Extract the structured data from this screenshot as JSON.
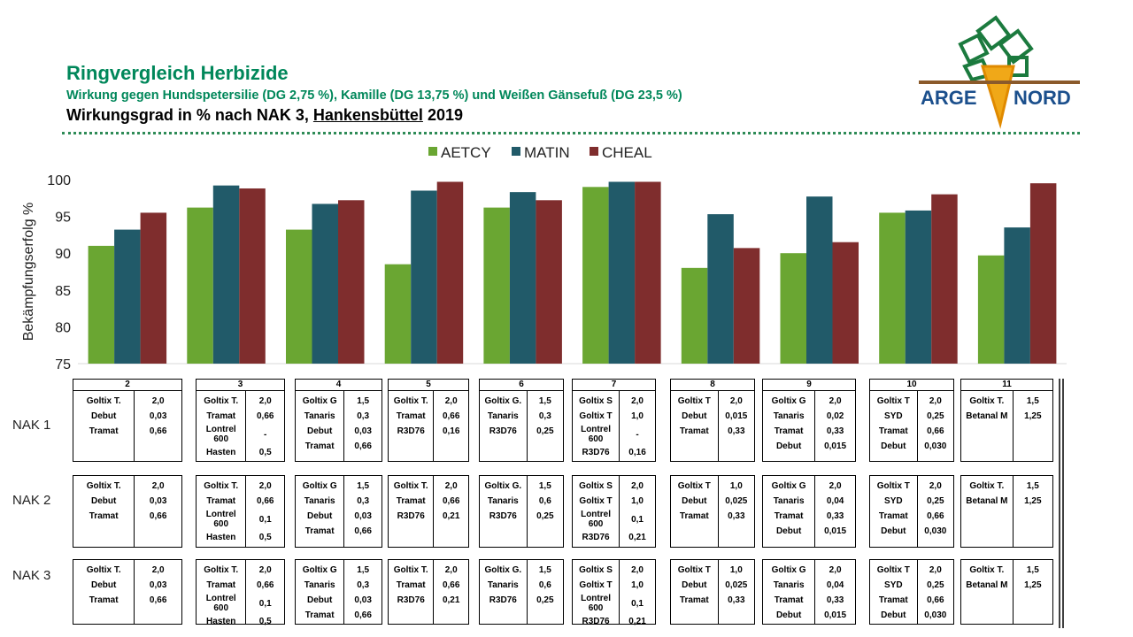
{
  "header": {
    "title": "Ringvergleich Herbizide",
    "subtitle": "Wirkung gegen Hundspetersilie (DG 2,75 %), Kamille (DG 13,75 %) und Weißen Gänsefuß (DG 23,5 %)",
    "heading": [
      "Wirkungsgrad in % nach NAK 3,",
      "Hankensbüttel",
      "2019"
    ]
  },
  "logo": [
    "ARGE",
    "NORD"
  ],
  "chart_data": {
    "type": "bar",
    "ylabel": "Bekämpfungserfolg %",
    "categories": [
      "2",
      "3",
      "4",
      "5",
      "6",
      "7",
      "8",
      "9",
      "10",
      "11"
    ],
    "series": [
      {
        "name": "AETCY",
        "color": "#6aa632",
        "values": [
          91,
          96.2,
          93.2,
          88.5,
          96.2,
          99,
          88,
          90,
          95.5,
          89.7
        ]
      },
      {
        "name": "MATIN",
        "color": "#215a69",
        "values": [
          93.2,
          99.2,
          96.7,
          98.5,
          98.3,
          99.7,
          95.3,
          97.7,
          95.8,
          93.5
        ]
      },
      {
        "name": "CHEAL",
        "color": "#7f2d2d",
        "values": [
          95.5,
          98.8,
          97.2,
          99.7,
          97.2,
          99.7,
          90.7,
          91.5,
          98,
          99.5
        ]
      }
    ],
    "ylim": [
      75,
      100
    ],
    "yticks": [
      75,
      80,
      85,
      90,
      95,
      100
    ],
    "grid": false,
    "legend": "top"
  },
  "treatments": {
    "rows": [
      "NAK 1",
      "NAK 2",
      "NAK 3"
    ],
    "columns": [
      [
        [
          [
            "Goltix T.",
            "2,0"
          ],
          [
            "Debut",
            "0,03"
          ],
          [
            "Tramat",
            "0,66"
          ]
        ],
        [
          [
            "Goltix T.",
            "2,0"
          ],
          [
            "Debut",
            "0,03"
          ],
          [
            "Tramat",
            "0,66"
          ]
        ],
        [
          [
            "Goltix T.",
            "2,0"
          ],
          [
            "Debut",
            "0,03"
          ],
          [
            "Tramat",
            "0,66"
          ]
        ]
      ],
      [
        [
          [
            "Goltix T.",
            "2,0"
          ],
          [
            "Tramat",
            "0,66"
          ],
          [
            "Lontrel 600",
            "-"
          ],
          [
            "Hasten",
            "0,5"
          ]
        ],
        [
          [
            "Goltix T.",
            "2,0"
          ],
          [
            "Tramat",
            "0,66"
          ],
          [
            "Lontrel 600",
            "0,1"
          ],
          [
            "Hasten",
            "0,5"
          ]
        ],
        [
          [
            "Goltix T.",
            "2,0"
          ],
          [
            "Tramat",
            "0,66"
          ],
          [
            "Lontrel 600",
            "0,1"
          ],
          [
            "Hasten",
            "0,5"
          ]
        ]
      ],
      [
        [
          [
            "Goltix G",
            "1,5"
          ],
          [
            "Tanaris",
            "0,3"
          ],
          [
            "Debut",
            "0,03"
          ],
          [
            "Tramat",
            "0,66"
          ]
        ],
        [
          [
            "Goltix G",
            "1,5"
          ],
          [
            "Tanaris",
            "0,3"
          ],
          [
            "Debut",
            "0,03"
          ],
          [
            "Tramat",
            "0,66"
          ]
        ],
        [
          [
            "Goltix G",
            "1,5"
          ],
          [
            "Tanaris",
            "0,3"
          ],
          [
            "Debut",
            "0,03"
          ],
          [
            "Tramat",
            "0,66"
          ]
        ]
      ],
      [
        [
          [
            "Goltix T.",
            "2,0"
          ],
          [
            "Tramat",
            "0,66"
          ],
          [
            "R3D76",
            "0,16"
          ]
        ],
        [
          [
            "Goltix T.",
            "2,0"
          ],
          [
            "Tramat",
            "0,66"
          ],
          [
            "R3D76",
            "0,21"
          ]
        ],
        [
          [
            "Goltix T.",
            "2,0"
          ],
          [
            "Tramat",
            "0,66"
          ],
          [
            "R3D76",
            "0,21"
          ]
        ]
      ],
      [
        [
          [
            "Goltix G.",
            "1,5"
          ],
          [
            "Tanaris",
            "0,3"
          ],
          [
            "R3D76",
            "0,25"
          ]
        ],
        [
          [
            "Goltix G.",
            "1,5"
          ],
          [
            "Tanaris",
            "0,6"
          ],
          [
            "R3D76",
            "0,25"
          ]
        ],
        [
          [
            "Goltix G.",
            "1,5"
          ],
          [
            "Tanaris",
            "0,6"
          ],
          [
            "R3D76",
            "0,25"
          ]
        ]
      ],
      [
        [
          [
            "Goltix S",
            "2,0"
          ],
          [
            "Goltix T",
            "1,0"
          ],
          [
            "Lontrel 600",
            "-"
          ],
          [
            "R3D76",
            "0,16"
          ]
        ],
        [
          [
            "Goltix S",
            "2,0"
          ],
          [
            "Goltix T",
            "1,0"
          ],
          [
            "Lontrel 600",
            "0,1"
          ],
          [
            "R3D76",
            "0,21"
          ]
        ],
        [
          [
            "Goltix S",
            "2,0"
          ],
          [
            "Goltix T",
            "1,0"
          ],
          [
            "Lontrel 600",
            "0,1"
          ],
          [
            "R3D76",
            "0,21"
          ]
        ]
      ],
      [
        [
          [
            "Goltix T",
            "2,0"
          ],
          [
            "Debut",
            "0,015"
          ],
          [
            "Tramat",
            "0,33"
          ]
        ],
        [
          [
            "Goltix T",
            "1,0"
          ],
          [
            "Debut",
            "0,025"
          ],
          [
            "Tramat",
            "0,33"
          ]
        ],
        [
          [
            "Goltix T",
            "1,0"
          ],
          [
            "Debut",
            "0,025"
          ],
          [
            "Tramat",
            "0,33"
          ]
        ]
      ],
      [
        [
          [
            "Goltix G",
            "2,0"
          ],
          [
            "Tanaris",
            "0,02"
          ],
          [
            "Tramat",
            "0,33"
          ],
          [
            "Debut",
            "0,015"
          ]
        ],
        [
          [
            "Goltix G",
            "2,0"
          ],
          [
            "Tanaris",
            "0,04"
          ],
          [
            "Tramat",
            "0,33"
          ],
          [
            "Debut",
            "0,015"
          ]
        ],
        [
          [
            "Goltix G",
            "2,0"
          ],
          [
            "Tanaris",
            "0,04"
          ],
          [
            "Tramat",
            "0,33"
          ],
          [
            "Debut",
            "0,015"
          ]
        ]
      ],
      [
        [
          [
            "Goltix T",
            "2,0"
          ],
          [
            "SYD",
            "0,25"
          ],
          [
            "Tramat",
            "0,66"
          ],
          [
            "Debut",
            "0,030"
          ]
        ],
        [
          [
            "Goltix T",
            "2,0"
          ],
          [
            "SYD",
            "0,25"
          ],
          [
            "Tramat",
            "0,66"
          ],
          [
            "Debut",
            "0,030"
          ]
        ],
        [
          [
            "Goltix T",
            "2,0"
          ],
          [
            "SYD",
            "0,25"
          ],
          [
            "Tramat",
            "0,66"
          ],
          [
            "Debut",
            "0,030"
          ]
        ]
      ],
      [
        [
          [
            "Goltix T.",
            "1,5"
          ],
          [
            "Betanal M",
            "1,25"
          ]
        ],
        [
          [
            "Goltix T.",
            "1,5"
          ],
          [
            "Betanal M",
            "1,25"
          ]
        ],
        [
          [
            "Goltix T.",
            "1,5"
          ],
          [
            "Betanal M",
            "1,25"
          ]
        ]
      ]
    ]
  }
}
